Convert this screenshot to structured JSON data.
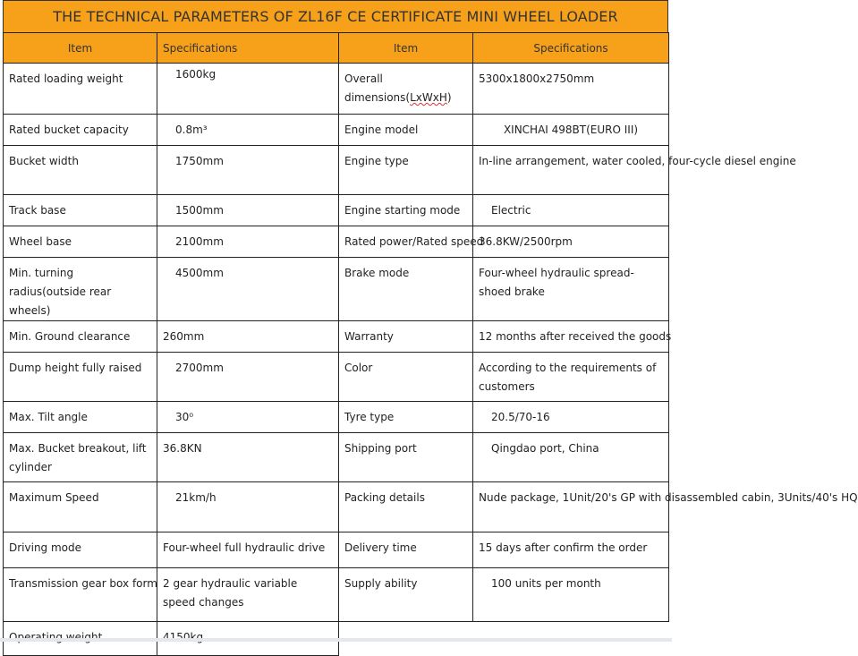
{
  "title": "THE TECHNICAL PARAMETERS OF ZL16F CE CERTIFICATE MINI WHEEL LOADER",
  "header": {
    "item": "Item",
    "spec": "Specifications",
    "item2": "Item",
    "spec2": "Specifications"
  },
  "accent_color": "#f7a11a",
  "rows": [
    {
      "item": "Rated loading weight",
      "spec": "1600kg",
      "item2": "Overall dimensions(LxWxH)",
      "spec2": "5300x1800x2750mm"
    },
    {
      "item": "Rated bucket capacity",
      "spec": "0.8m³",
      "item2": "Engine model",
      "spec2": "XINCHAI 498BT(EURO III)"
    },
    {
      "item": "Bucket width",
      "spec": "1750mm",
      "item2": "Engine type",
      "spec2": "In-line arrangement, water cooled, four-cycle diesel engine"
    },
    {
      "item": "Track base",
      "spec": "1500mm",
      "item2": "Engine starting mode",
      "spec2": "Electric"
    },
    {
      "item": "Wheel base",
      "spec": "2100mm",
      "item2": "Rated power/Rated speed",
      "spec2": "36.8KW/2500rpm"
    },
    {
      "item": "Min. turning radius(outside rear wheels)",
      "spec": "4500mm",
      "item2": "Brake mode",
      "spec2": "Four-wheel hydraulic spread-shoed brake"
    },
    {
      "item": "Min. Ground clearance",
      "spec": "260mm",
      "item2": "Warranty",
      "spec2": "12 months after received the goods"
    },
    {
      "item": "Dump height fully raised",
      "spec": "2700mm",
      "item2": "Color",
      "spec2": "According to the requirements of customers"
    },
    {
      "item": "Max. Tilt angle",
      "spec": "30⁰",
      "item2": "Tyre type",
      "spec2": "20.5/70-16"
    },
    {
      "item": "Max. Bucket breakout, lift cylinder",
      "spec": "36.8KN",
      "item2": "Shipping port",
      "spec2": "Qingdao port, China"
    },
    {
      "item": "Maximum Speed",
      "spec": "21km/h",
      "item2": "Packing details",
      "spec2": "Nude package, 1Unit/20's GP with disassembled cabin, 3Units/40's HQ"
    },
    {
      "item": "Driving mode",
      "spec": "Four-wheel full hydraulic drive",
      "item2": "Delivery time",
      "spec2": "15 days after confirm the order"
    },
    {
      "item": "Transmission gear box form",
      "spec": "2 gear hydraulic variable speed changes",
      "item2": "Supply ability",
      "spec2": "100 units per month"
    },
    {
      "item": "Operating weight",
      "spec": "4150kg"
    }
  ]
}
